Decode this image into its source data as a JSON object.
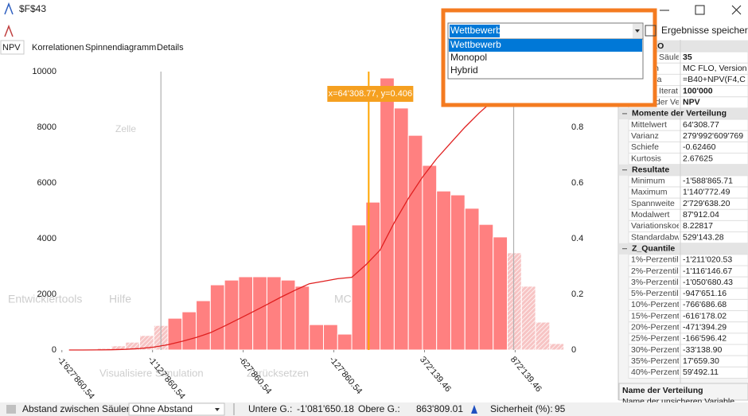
{
  "window": {
    "title": "$F$43"
  },
  "background_text": [
    "Entwicklertools",
    "Hilfe",
    "MC FLO",
    "Zelle",
    "Visualisiere Simulation",
    "Zurücksetzen"
  ],
  "tabs": [
    "NPV",
    "Korrelationen",
    "Spinnendiagramm",
    "Details"
  ],
  "chart_data": {
    "type": "histogram",
    "bins": [
      -1588865.71,
      -1510876.05,
      -1432886.38,
      -1354896.72,
      -1276907.06,
      -1198917.39,
      -1120927.73,
      -1042938.07,
      -964948.4,
      -886958.74,
      -808969.08,
      -730979.41,
      -652989.75,
      -575000.09,
      -497010.42,
      -419020.76,
      -341031.1,
      -263041.43,
      -185051.77,
      -107062.11,
      -29072.44,
      48917.22,
      126906.88,
      204896.55,
      282886.21,
      360875.87,
      438865.54,
      516855.2,
      594844.86,
      672834.53,
      750824.19,
      828813.85,
      906803.52,
      984793.18,
      1062782.84,
      1140772.49
    ],
    "values": [
      5,
      20,
      60,
      150,
      280,
      520,
      880,
      1140,
      1370,
      1770,
      2340,
      2510,
      2630,
      2630,
      2630,
      2510,
      2290,
      910,
      910,
      570,
      4490,
      5310,
      9770,
      8690,
      7710,
      6630,
      5710,
      5570,
      5090,
      4510,
      4060,
      3490,
      2290,
      1000,
      230
    ],
    "color": "#ff8080",
    "cdf": {
      "values": [
        0,
        0.0001,
        0.0003,
        0.0009,
        0.0024,
        0.0052,
        0.0104,
        0.019,
        0.031,
        0.045,
        0.062,
        0.086,
        0.111,
        0.137,
        0.163,
        0.19,
        0.215,
        0.238,
        0.247,
        0.256,
        0.261,
        0.306,
        0.359,
        0.457,
        0.544,
        0.621,
        0.687,
        0.744,
        0.8,
        0.851,
        0.896,
        0.937,
        0.972,
        0.994,
        0.998,
        1
      ],
      "color": "#e02020",
      "axis": "y2"
    },
    "markers": [
      {
        "value": -1081650.18,
        "color": "#b0b0b0"
      },
      {
        "value": 863809.01,
        "color": "#b0b0b0"
      },
      {
        "value": 64308.77,
        "color": "#ffa500"
      }
    ],
    "tooltip": "x=64'308.77, y=0.406",
    "xlim": [
      -1640000,
      1160000
    ],
    "xticks": [
      {
        "value": -1627860.54,
        "label": "-1'627'860.54"
      },
      {
        "value": -1127860.54,
        "label": "-1'127'860.54"
      },
      {
        "value": -627860.54,
        "label": "-627'860.54"
      },
      {
        "value": -127860.54,
        "label": "-127'860.54"
      },
      {
        "value": 372139.46,
        "label": "372'139.46"
      },
      {
        "value": 872139.46,
        "label": "872'139.46"
      }
    ],
    "ylim": [
      0,
      10000
    ],
    "yticks": [
      0,
      2000,
      4000,
      6000,
      8000,
      10000
    ],
    "y2lim": [
      0,
      1
    ],
    "y2ticks": [
      0,
      0.2,
      0.4,
      0.6,
      0.8
    ]
  },
  "dropdown": {
    "selected": "Wettbewerb",
    "options": [
      "Wettbewerb",
      "Monopol",
      "Hybrid"
    ]
  },
  "save_button": "Ergebnisse speichern",
  "property_sections": [
    {
      "title": "MC FLO",
      "rows": [
        {
          "label": "Anzahl Säule",
          "value": "35",
          "bold": true
        },
        {
          "label": "Version",
          "value": "MC FLO, Version"
        },
        {
          "label": "Formula",
          "value": "=B40+NPV(F4,C"
        },
        {
          "label": "Anzahl Iterat",
          "value": "100'000",
          "bold": true
        },
        {
          "label": "Name der Ve",
          "value": "NPV",
          "bold": true
        }
      ]
    },
    {
      "title": "Momente der Verteilung",
      "rows": [
        {
          "label": "Mittelwert",
          "value": "64'308.77"
        },
        {
          "label": "Varianz",
          "value": "279'992'609'769"
        },
        {
          "label": "Schiefe",
          "value": "-0.62460"
        },
        {
          "label": "Kurtosis",
          "value": "2.67625"
        }
      ]
    },
    {
      "title": "Resultate",
      "rows": [
        {
          "label": "Minimum",
          "value": "-1'588'865.71"
        },
        {
          "label": "Maximum",
          "value": "1'140'772.49"
        },
        {
          "label": "Spannweite",
          "value": "2'729'638.20"
        },
        {
          "label": "Modalwert",
          "value": "87'912.04"
        },
        {
          "label": "Variationskoe",
          "value": "8.22817"
        },
        {
          "label": "Standardabw",
          "value": "529'143.28"
        }
      ]
    },
    {
      "title": "Z_Quantile",
      "rows": [
        {
          "label": "1%-Perzentil",
          "value": "-1'211'020.53"
        },
        {
          "label": "2%-Perzentil",
          "value": "-1'116'146.67"
        },
        {
          "label": "3%-Perzentil",
          "value": "-1'050'680.43"
        },
        {
          "label": "5%-Perzentil",
          "value": "-947'651.16"
        },
        {
          "label": "10%-Perzent",
          "value": "-766'686.68"
        },
        {
          "label": "15%-Perzent",
          "value": "-616'178.02"
        },
        {
          "label": "20%-Perzent",
          "value": "-471'394.29"
        },
        {
          "label": "25%-Perzent",
          "value": "-166'596.42"
        },
        {
          "label": "30%-Perzent",
          "value": "-33'138.90"
        },
        {
          "label": "35%-Perzent",
          "value": "17'659.30"
        },
        {
          "label": "40%-Perzent",
          "value": "59'492.11"
        }
      ]
    }
  ],
  "description": {
    "title": "Name der Verteilung",
    "text": "Name der unsicheren Variable"
  },
  "bottom_bar": {
    "spacing_label": "Abstand zwischen Säulen:",
    "spacing_value": "Ohne Abstand",
    "lower_label": "Untere G.:",
    "lower_value": "-1'081'650.18",
    "upper_label": "Obere G.:",
    "upper_value": "863'809.01",
    "confidence_label": "Sicherheit (%):",
    "confidence_value": "95"
  }
}
